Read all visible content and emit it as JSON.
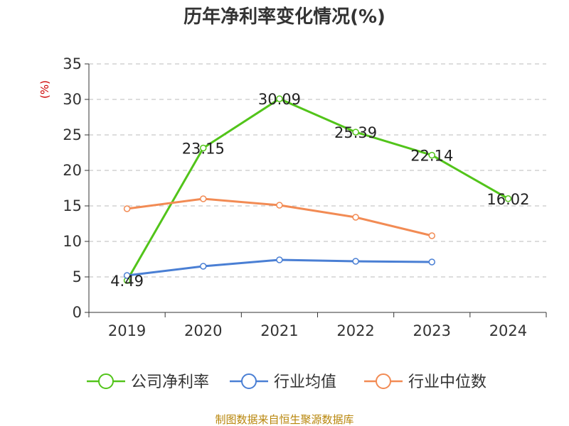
{
  "chart_data": {
    "type": "line",
    "title": "历年净利率变化情况(%)",
    "ylabel": "(%)",
    "xlabel": "",
    "ylim": [
      0,
      35
    ],
    "yticks": [
      0,
      5,
      10,
      15,
      20,
      25,
      30,
      35
    ],
    "categories": [
      "2019",
      "2020",
      "2021",
      "2022",
      "2023",
      "2024"
    ],
    "grid": true,
    "legend_position": "bottom",
    "series": [
      {
        "name": "公司净利率",
        "color": "#52c41a",
        "values": [
          4.49,
          23.15,
          30.09,
          25.39,
          22.14,
          16.02
        ],
        "show_labels": true
      },
      {
        "name": "行业均值",
        "color": "#4a7fd4",
        "values": [
          5.2,
          6.5,
          7.4,
          7.2,
          7.1,
          null
        ],
        "show_labels": false
      },
      {
        "name": "行业中位数",
        "color": "#f28b54",
        "values": [
          14.6,
          16.0,
          15.1,
          13.4,
          10.8,
          null
        ],
        "show_labels": false
      }
    ],
    "source": "制图数据来自恒生聚源数据库"
  }
}
